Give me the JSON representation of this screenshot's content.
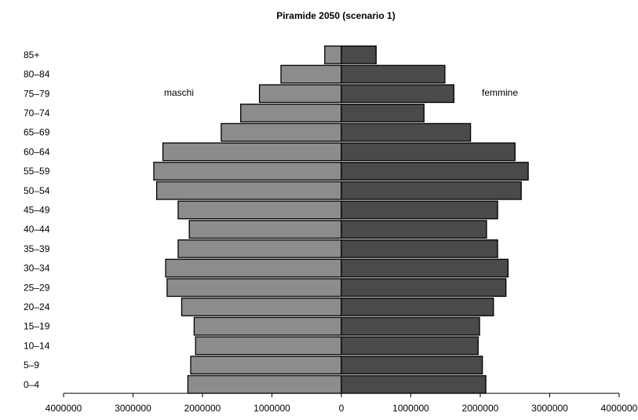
{
  "chart_data": {
    "type": "bar",
    "orientation": "horizontal-population-pyramid",
    "title": "Piramide 2050 (scenario 1)",
    "categories": [
      "0–4",
      "5–9",
      "10–14",
      "15–19",
      "20–24",
      "25–29",
      "30–34",
      "35–39",
      "40–44",
      "45–49",
      "50–54",
      "55–59",
      "60–64",
      "65–69",
      "70–74",
      "75–79",
      "80–84",
      "85+"
    ],
    "series": [
      {
        "name": "maschi",
        "side": "left",
        "color": "#8c8c8c",
        "values": [
          2210000,
          2170000,
          2100000,
          2120000,
          2300000,
          2510000,
          2530000,
          2350000,
          2190000,
          2350000,
          2660000,
          2700000,
          2570000,
          1730000,
          1450000,
          1180000,
          870000,
          240000
        ]
      },
      {
        "name": "femmine",
        "side": "right",
        "color": "#4a4a4a",
        "values": [
          2080000,
          2030000,
          1970000,
          1990000,
          2190000,
          2370000,
          2400000,
          2250000,
          2090000,
          2250000,
          2590000,
          2690000,
          2500000,
          1860000,
          1190000,
          1620000,
          1490000,
          500000
        ]
      }
    ],
    "xticks": [
      "4000000",
      "3000000",
      "2000000",
      "1000000",
      "0",
      "1000000",
      "2000000",
      "3000000",
      "4000000"
    ],
    "xlim": [
      -4000000,
      4000000
    ],
    "grid": false,
    "legend": "inline-labels"
  }
}
